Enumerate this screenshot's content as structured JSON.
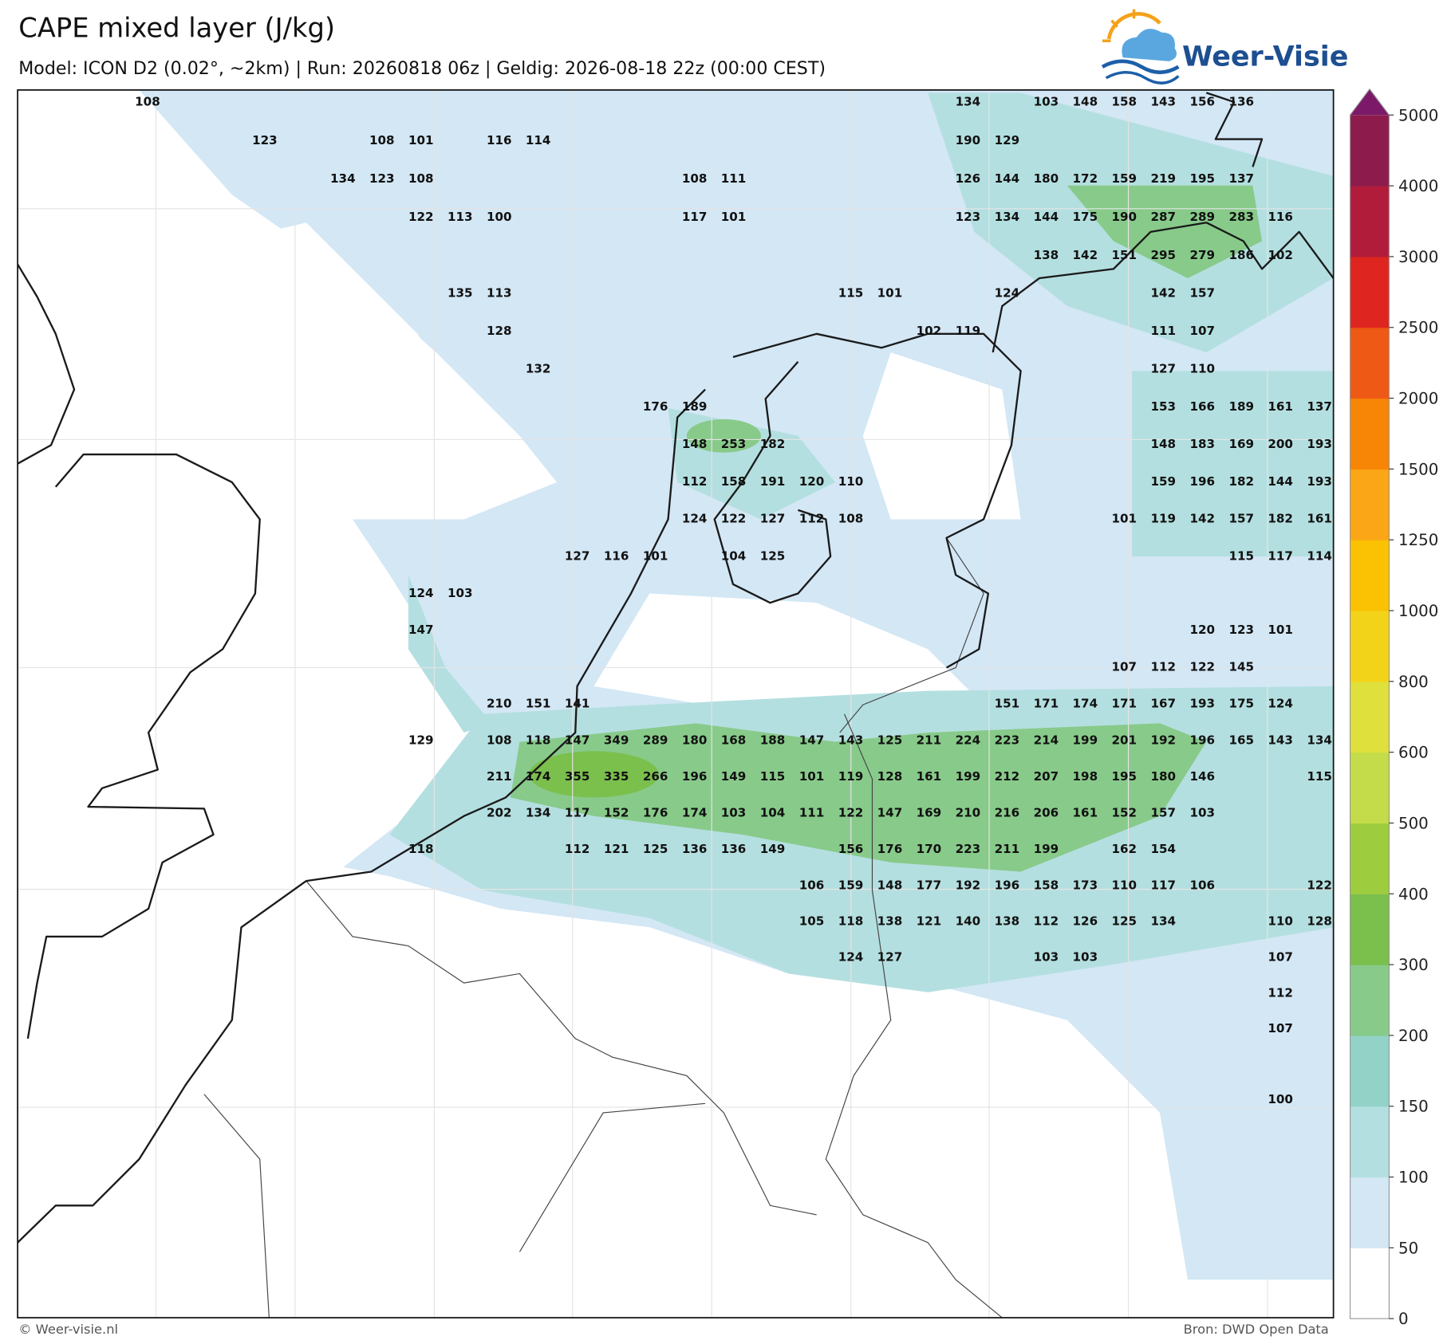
{
  "header": {
    "title": "CAPE mixed layer (J/kg)",
    "subtitle": "Model: ICON D2 (0.02°, ~2km)  |  Run: 20260818 06z  |  Geldig: 2026-08-18 22z (00:00 CEST)"
  },
  "logo": {
    "text": "Weer-Visie"
  },
  "map": {
    "labels": [
      [
        108,
        null,
        null,
        null,
        null,
        null,
        null,
        null,
        null,
        null,
        null,
        null,
        null,
        null,
        null,
        null,
        null,
        null,
        null,
        null,
        null,
        134,
        null,
        103,
        148,
        158,
        143,
        156,
        136,
        null,
        null
      ],
      [
        null,
        null,
        null,
        123,
        null,
        null,
        108,
        101,
        null,
        116,
        114,
        null,
        null,
        null,
        null,
        null,
        null,
        null,
        null,
        null,
        null,
        190,
        129,
        null,
        null,
        null,
        null,
        null,
        null,
        null,
        null
      ],
      [
        null,
        null,
        null,
        null,
        null,
        134,
        123,
        108,
        null,
        null,
        null,
        null,
        null,
        null,
        108,
        111,
        null,
        null,
        null,
        null,
        null,
        126,
        144,
        180,
        172,
        159,
        219,
        195,
        137,
        null,
        null
      ],
      [
        null,
        null,
        null,
        null,
        null,
        null,
        null,
        122,
        113,
        100,
        null,
        null,
        null,
        null,
        117,
        101,
        null,
        null,
        null,
        null,
        null,
        123,
        134,
        144,
        175,
        190,
        287,
        289,
        283,
        116,
        null
      ],
      [
        null,
        null,
        null,
        null,
        null,
        null,
        null,
        null,
        null,
        null,
        null,
        null,
        null,
        null,
        null,
        null,
        null,
        null,
        null,
        null,
        null,
        null,
        null,
        138,
        142,
        151,
        295,
        279,
        186,
        102,
        null
      ],
      [
        null,
        null,
        null,
        null,
        null,
        null,
        null,
        null,
        135,
        113,
        null,
        null,
        null,
        null,
        null,
        null,
        null,
        null,
        115,
        101,
        null,
        null,
        124,
        null,
        null,
        null,
        142,
        157,
        null,
        null,
        null
      ],
      [
        null,
        null,
        null,
        null,
        null,
        null,
        null,
        null,
        null,
        128,
        null,
        null,
        null,
        null,
        null,
        null,
        null,
        null,
        null,
        null,
        102,
        119,
        null,
        null,
        null,
        null,
        111,
        107,
        null,
        null,
        null
      ],
      [
        null,
        null,
        null,
        null,
        null,
        null,
        null,
        null,
        null,
        null,
        132,
        null,
        null,
        null,
        null,
        null,
        null,
        null,
        null,
        null,
        null,
        null,
        null,
        null,
        null,
        null,
        127,
        110,
        null,
        null,
        null
      ],
      [
        null,
        null,
        null,
        null,
        null,
        null,
        null,
        null,
        null,
        null,
        null,
        null,
        null,
        176,
        189,
        null,
        null,
        null,
        null,
        null,
        null,
        null,
        null,
        null,
        null,
        null,
        153,
        166,
        189,
        161,
        137
      ],
      [
        null,
        null,
        null,
        null,
        null,
        null,
        null,
        null,
        null,
        null,
        null,
        null,
        null,
        null,
        148,
        253,
        182,
        null,
        null,
        null,
        null,
        null,
        null,
        null,
        null,
        null,
        148,
        183,
        169,
        200,
        193
      ],
      [
        null,
        null,
        null,
        null,
        null,
        null,
        null,
        null,
        null,
        null,
        null,
        null,
        null,
        null,
        112,
        158,
        191,
        120,
        110,
        null,
        null,
        null,
        null,
        null,
        null,
        null,
        159,
        196,
        182,
        144,
        193
      ],
      [
        null,
        null,
        null,
        null,
        null,
        null,
        null,
        null,
        null,
        null,
        null,
        null,
        null,
        null,
        124,
        122,
        127,
        112,
        108,
        null,
        null,
        null,
        null,
        null,
        null,
        101,
        119,
        142,
        157,
        182,
        161
      ],
      [
        null,
        null,
        null,
        null,
        null,
        null,
        null,
        null,
        null,
        null,
        null,
        127,
        116,
        101,
        null,
        104,
        125,
        null,
        null,
        null,
        null,
        null,
        null,
        null,
        null,
        null,
        null,
        null,
        115,
        117,
        114
      ],
      [
        null,
        null,
        null,
        null,
        null,
        null,
        null,
        124,
        103,
        null,
        null,
        null,
        null,
        null,
        null,
        null,
        null,
        null,
        null,
        null,
        null,
        null,
        null,
        null,
        null,
        null,
        null,
        null,
        null,
        null,
        null
      ],
      [
        null,
        null,
        null,
        null,
        null,
        null,
        null,
        147,
        null,
        null,
        null,
        null,
        null,
        null,
        null,
        null,
        null,
        null,
        null,
        null,
        null,
        null,
        null,
        null,
        null,
        null,
        null,
        120,
        123,
        101,
        null
      ],
      [
        null,
        null,
        null,
        null,
        null,
        null,
        null,
        null,
        null,
        null,
        null,
        null,
        null,
        null,
        null,
        null,
        null,
        null,
        null,
        null,
        null,
        null,
        null,
        null,
        null,
        107,
        112,
        122,
        145,
        null,
        null
      ],
      [
        null,
        null,
        null,
        null,
        null,
        null,
        null,
        null,
        null,
        210,
        151,
        141,
        null,
        null,
        null,
        null,
        null,
        null,
        null,
        null,
        null,
        null,
        151,
        171,
        174,
        171,
        167,
        193,
        175,
        124,
        null
      ],
      [
        null,
        null,
        null,
        null,
        null,
        null,
        null,
        129,
        null,
        108,
        118,
        147,
        349,
        289,
        180,
        168,
        188,
        147,
        143,
        125,
        211,
        224,
        223,
        214,
        199,
        201,
        192,
        196,
        165,
        143,
        134
      ],
      [
        null,
        null,
        null,
        null,
        null,
        null,
        null,
        null,
        null,
        211,
        174,
        355,
        335,
        266,
        196,
        149,
        115,
        101,
        119,
        128,
        161,
        199,
        212,
        207,
        198,
        195,
        180,
        146,
        null,
        null,
        115
      ],
      [
        null,
        null,
        null,
        null,
        null,
        null,
        null,
        null,
        null,
        202,
        134,
        117,
        152,
        176,
        174,
        103,
        104,
        111,
        122,
        147,
        169,
        210,
        216,
        206,
        161,
        152,
        157,
        103,
        null,
        null,
        null
      ],
      [
        null,
        null,
        null,
        null,
        null,
        null,
        null,
        118,
        null,
        null,
        null,
        112,
        121,
        125,
        136,
        136,
        149,
        null,
        156,
        176,
        170,
        223,
        211,
        199,
        null,
        162,
        154,
        null,
        null,
        null,
        null
      ],
      [
        null,
        null,
        null,
        null,
        null,
        null,
        null,
        null,
        null,
        null,
        null,
        null,
        null,
        null,
        null,
        null,
        null,
        106,
        159,
        148,
        177,
        192,
        196,
        158,
        173,
        110,
        117,
        106,
        null,
        null,
        122
      ],
      [
        null,
        null,
        null,
        null,
        null,
        null,
        null,
        null,
        null,
        null,
        null,
        null,
        null,
        null,
        null,
        null,
        null,
        105,
        118,
        138,
        121,
        140,
        138,
        112,
        126,
        125,
        134,
        null,
        null,
        110,
        128
      ],
      [
        null,
        null,
        null,
        null,
        null,
        null,
        null,
        null,
        null,
        null,
        null,
        null,
        null,
        null,
        null,
        null,
        null,
        null,
        124,
        127,
        null,
        null,
        null,
        103,
        103,
        null,
        null,
        null,
        null,
        107,
        null
      ],
      [
        null,
        null,
        null,
        null,
        null,
        null,
        null,
        null,
        null,
        null,
        null,
        null,
        null,
        null,
        null,
        null,
        null,
        null,
        null,
        null,
        null,
        null,
        null,
        null,
        null,
        null,
        null,
        null,
        null,
        112,
        null
      ],
      [
        null,
        null,
        null,
        null,
        null,
        null,
        null,
        null,
        null,
        null,
        null,
        null,
        null,
        null,
        null,
        null,
        null,
        null,
        null,
        null,
        null,
        null,
        null,
        null,
        null,
        null,
        null,
        null,
        null,
        107,
        null
      ],
      [
        null,
        null,
        null,
        null,
        null,
        null,
        null,
        null,
        null,
        null,
        null,
        null,
        null,
        null,
        null,
        null,
        null,
        null,
        null,
        null,
        null,
        null,
        null,
        null,
        null,
        null,
        null,
        null,
        null,
        null,
        null
      ],
      [
        null,
        null,
        null,
        null,
        null,
        null,
        null,
        null,
        null,
        null,
        null,
        null,
        null,
        null,
        null,
        null,
        null,
        null,
        null,
        null,
        null,
        null,
        null,
        null,
        null,
        null,
        null,
        null,
        null,
        100,
        null
      ]
    ]
  },
  "colorbar": {
    "levels": [
      0,
      50,
      100,
      150,
      200,
      300,
      400,
      500,
      600,
      800,
      1000,
      1250,
      1500,
      2000,
      2500,
      3000,
      4000,
      5000
    ],
    "colors": [
      "#ffffff",
      "#d3e7f5",
      "#b4dfe0",
      "#93d2c6",
      "#88ca8a",
      "#7bbf4d",
      "#9dcd3e",
      "#c4dc49",
      "#dfe03b",
      "#f3d31a",
      "#fbc203",
      "#fba616",
      "#f78506",
      "#ee5915",
      "#df251f",
      "#b21c3b",
      "#8d1c4d"
    ],
    "extend_color": "#7c1a69"
  },
  "footer": {
    "left": "© Weer-visie.nl",
    "right": "Bron: DWD Open Data"
  }
}
